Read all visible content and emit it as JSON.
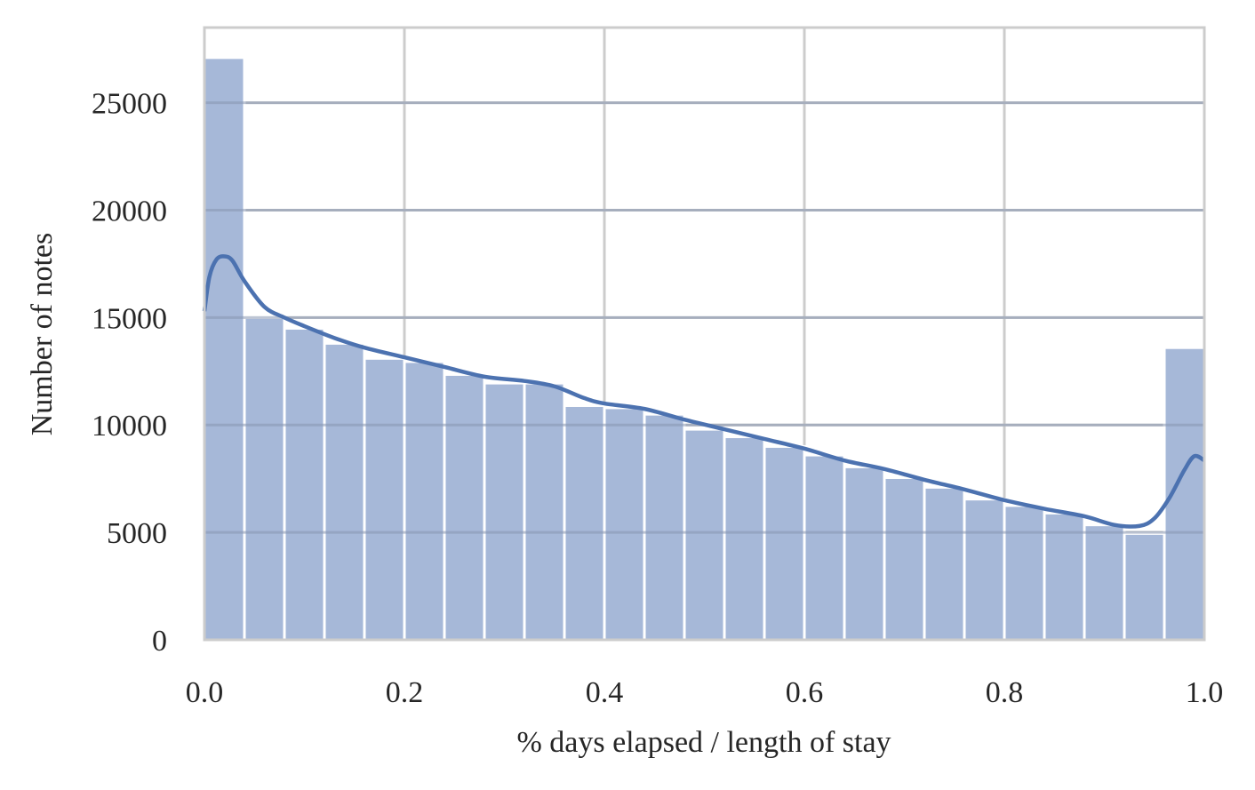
{
  "chart_data": {
    "type": "bar",
    "title": "",
    "xlabel": "% days elapsed / length of stay",
    "ylabel": "Number of notes",
    "xlim": [
      0.0,
      1.0
    ],
    "ylim": [
      0,
      28500
    ],
    "grid": true,
    "xticks": [
      "0.0",
      "0.2",
      "0.4",
      "0.6",
      "0.8",
      "1.0"
    ],
    "yticks": [
      "0",
      "5000",
      "10000",
      "15000",
      "20000",
      "25000"
    ],
    "bin_edges": [
      0.0,
      0.04,
      0.08,
      0.12,
      0.16,
      0.2,
      0.24,
      0.28,
      0.32,
      0.36,
      0.4,
      0.44,
      0.48,
      0.52,
      0.56,
      0.6,
      0.64,
      0.68,
      0.72,
      0.76,
      0.8,
      0.84,
      0.88,
      0.92,
      0.96,
      1.0
    ],
    "values": [
      27100,
      15000,
      14500,
      13800,
      13100,
      12950,
      12350,
      11950,
      11950,
      10900,
      10800,
      10500,
      9800,
      9450,
      9000,
      8600,
      8050,
      7550,
      7100,
      6550,
      6250,
      5900,
      5350,
      4950,
      13600
    ],
    "kde": {
      "x": [
        0.0,
        0.005,
        0.012,
        0.02,
        0.028,
        0.04,
        0.06,
        0.08,
        0.1,
        0.13,
        0.16,
        0.2,
        0.24,
        0.28,
        0.32,
        0.35,
        0.38,
        0.4,
        0.44,
        0.48,
        0.52,
        0.56,
        0.6,
        0.64,
        0.68,
        0.72,
        0.76,
        0.8,
        0.84,
        0.88,
        0.91,
        0.935,
        0.95,
        0.965,
        0.98,
        0.99,
        1.0
      ],
      "y": [
        15300,
        16900,
        17700,
        17850,
        17650,
        16700,
        15500,
        15000,
        14600,
        14050,
        13600,
        13150,
        12700,
        12250,
        12050,
        11800,
        11250,
        11000,
        10750,
        10250,
        9800,
        9350,
        8900,
        8350,
        7950,
        7450,
        7000,
        6500,
        6100,
        5750,
        5350,
        5300,
        5650,
        6600,
        7900,
        8550,
        8350
      ]
    },
    "colors": {
      "bar": "#a6b8d8",
      "bar_edge": "#ffffff",
      "kde_line": "#4c72b0",
      "grid": "#cccccc",
      "spine": "#cccccc"
    }
  }
}
